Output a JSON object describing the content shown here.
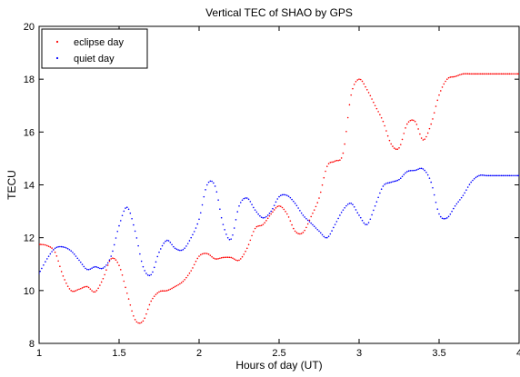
{
  "chart_data": {
    "type": "scatter",
    "title": "Vertical TEC of SHAO by GPS",
    "xlabel": "Hours of day (UT)",
    "ylabel": "TECU",
    "xlim": [
      1,
      4
    ],
    "ylim": [
      8,
      20
    ],
    "x_ticks": [
      "1",
      "1.5",
      "2",
      "2.5",
      "3",
      "3.5",
      "4"
    ],
    "y_ticks": [
      "8",
      "10",
      "12",
      "14",
      "16",
      "18",
      "20"
    ],
    "grid": false,
    "legend_position": "top-left",
    "series": [
      {
        "name": "eclipse day",
        "color": "#ff0000",
        "x": [
          1.0,
          1.05,
          1.1,
          1.15,
          1.2,
          1.25,
          1.3,
          1.35,
          1.4,
          1.45,
          1.5,
          1.55,
          1.6,
          1.65,
          1.7,
          1.75,
          1.8,
          1.85,
          1.9,
          1.95,
          2.0,
          2.05,
          2.1,
          2.15,
          2.2,
          2.25,
          2.3,
          2.35,
          2.4,
          2.45,
          2.5,
          2.55,
          2.6,
          2.65,
          2.7,
          2.75,
          2.8,
          2.85,
          2.9,
          2.95,
          3.0,
          3.05,
          3.1,
          3.15,
          3.2,
          3.25,
          3.3,
          3.35,
          3.4,
          3.45,
          3.5,
          3.55,
          3.6,
          3.65,
          3.7,
          3.75,
          3.8,
          3.85,
          3.9,
          3.95,
          4.0
        ],
        "y": [
          11.75,
          11.7,
          11.45,
          10.55,
          10.0,
          10.05,
          10.15,
          9.95,
          10.45,
          11.2,
          10.95,
          9.9,
          8.9,
          8.85,
          9.6,
          9.95,
          10.0,
          10.15,
          10.35,
          10.75,
          11.3,
          11.4,
          11.2,
          11.25,
          11.25,
          11.15,
          11.6,
          12.35,
          12.5,
          12.9,
          13.2,
          12.9,
          12.25,
          12.2,
          12.8,
          13.5,
          14.7,
          14.9,
          15.2,
          17.4,
          18.0,
          17.6,
          17.0,
          16.4,
          15.55,
          15.4,
          16.3,
          16.4,
          15.7,
          16.3,
          17.4,
          18.0,
          18.1,
          18.2,
          18.2,
          18.2,
          18.2,
          18.2,
          18.2,
          18.2,
          18.2
        ]
      },
      {
        "name": "quiet day",
        "color": "#0000ff",
        "x": [
          1.0,
          1.05,
          1.1,
          1.15,
          1.2,
          1.25,
          1.3,
          1.35,
          1.4,
          1.45,
          1.5,
          1.55,
          1.6,
          1.65,
          1.7,
          1.75,
          1.8,
          1.85,
          1.9,
          1.95,
          2.0,
          2.05,
          2.1,
          2.15,
          2.2,
          2.25,
          2.3,
          2.35,
          2.4,
          2.45,
          2.5,
          2.55,
          2.6,
          2.65,
          2.7,
          2.75,
          2.8,
          2.85,
          2.9,
          2.95,
          3.0,
          3.05,
          3.1,
          3.15,
          3.2,
          3.25,
          3.3,
          3.35,
          3.4,
          3.45,
          3.5,
          3.55,
          3.6,
          3.65,
          3.7,
          3.75,
          3.8,
          3.85,
          3.9,
          3.95,
          4.0
        ],
        "y": [
          10.65,
          11.2,
          11.6,
          11.65,
          11.5,
          11.15,
          10.8,
          10.9,
          10.85,
          11.3,
          12.45,
          13.15,
          12.25,
          10.9,
          10.6,
          11.45,
          11.9,
          11.6,
          11.55,
          12.0,
          12.7,
          14.0,
          13.95,
          12.5,
          11.95,
          13.2,
          13.5,
          13.05,
          12.75,
          13.0,
          13.55,
          13.6,
          13.3,
          12.85,
          12.55,
          12.25,
          12.0,
          12.5,
          13.05,
          13.3,
          12.85,
          12.5,
          13.2,
          13.95,
          14.1,
          14.2,
          14.5,
          14.55,
          14.6,
          14.1,
          12.9,
          12.75,
          13.2,
          13.6,
          14.1,
          14.35,
          14.35,
          14.35,
          14.35,
          14.35,
          14.35
        ]
      }
    ]
  }
}
